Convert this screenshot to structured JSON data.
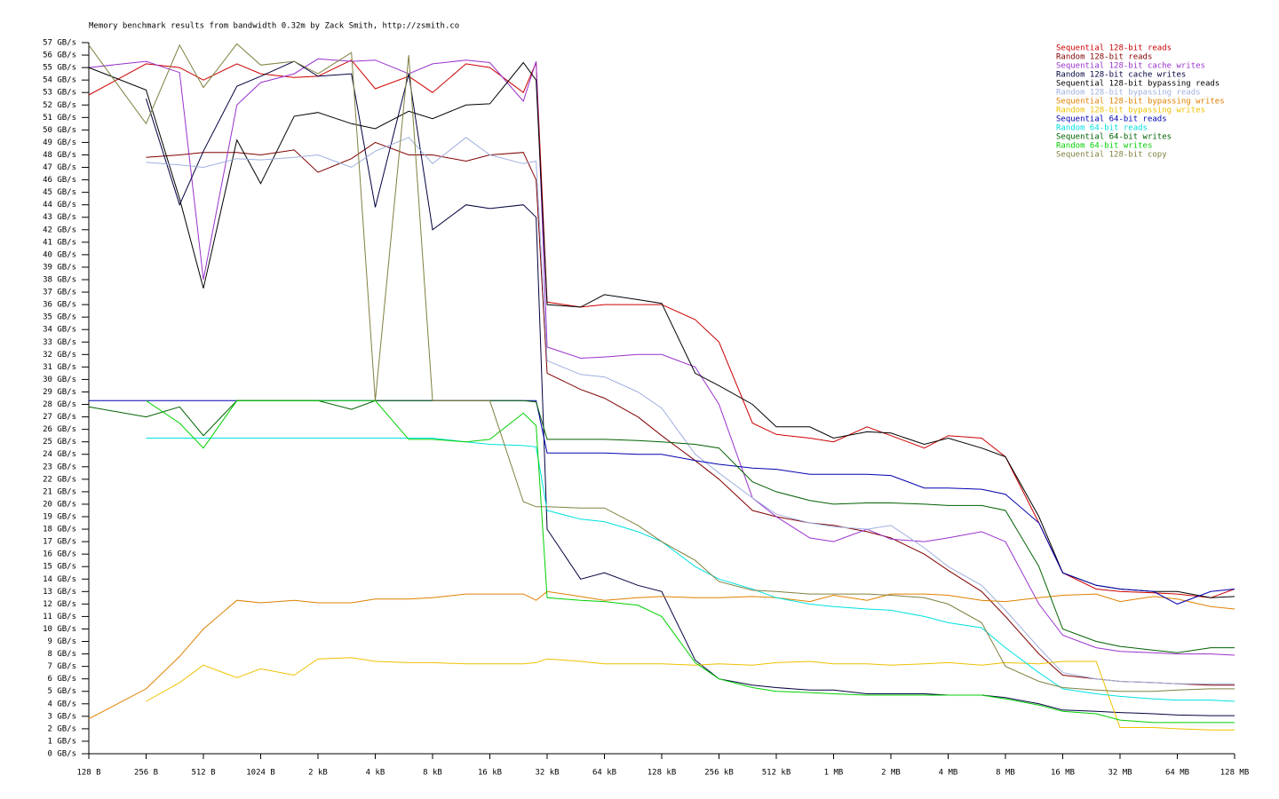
{
  "chart_data": {
    "type": "line",
    "title": "Memory benchmark results from bandwidth 0.32m by Zack Smith, http://zsmith.co",
    "xscale": "log2",
    "legend": "top-right",
    "grid": false,
    "x": [
      128,
      256,
      384,
      512,
      768,
      1024,
      1536,
      2048,
      3072,
      4096,
      6144,
      8192,
      12288,
      16384,
      24576,
      28672,
      32768,
      49152,
      65536,
      98304,
      131072,
      196608,
      262144,
      393216,
      524288,
      786432,
      1048576,
      1572864,
      2097152,
      3145728,
      4194304,
      6291456,
      8388608,
      12582912,
      16777216,
      25165824,
      33554432,
      50331648,
      67108864,
      100663296,
      134217728
    ],
    "xlim": [
      128,
      134217728
    ],
    "xticks": [
      {
        "value": 128,
        "label": "128 B"
      },
      {
        "value": 256,
        "label": "256 B"
      },
      {
        "value": 512,
        "label": "512 B"
      },
      {
        "value": 1024,
        "label": "1024 B"
      },
      {
        "value": 2048,
        "label": "2 kB"
      },
      {
        "value": 4096,
        "label": "4 kB"
      },
      {
        "value": 8192,
        "label": "8 kB"
      },
      {
        "value": 16384,
        "label": "16 kB"
      },
      {
        "value": 32768,
        "label": "32 kB"
      },
      {
        "value": 65536,
        "label": "64 kB"
      },
      {
        "value": 131072,
        "label": "128 kB"
      },
      {
        "value": 262144,
        "label": "256 kB"
      },
      {
        "value": 524288,
        "label": "512 kB"
      },
      {
        "value": 1048576,
        "label": "1 MB"
      },
      {
        "value": 2097152,
        "label": "2 MB"
      },
      {
        "value": 4194304,
        "label": "4 MB"
      },
      {
        "value": 8388608,
        "label": "8 MB"
      },
      {
        "value": 16777216,
        "label": "16 MB"
      },
      {
        "value": 33554432,
        "label": "32 MB"
      },
      {
        "value": 67108864,
        "label": "64 MB"
      },
      {
        "value": 134217728,
        "label": "128 MB"
      }
    ],
    "ylim": [
      0,
      57
    ],
    "yticks": [
      {
        "value": 0,
        "label": "0 GB/s"
      },
      {
        "value": 1,
        "label": "1 GB/s"
      },
      {
        "value": 2,
        "label": "2 GB/s"
      },
      {
        "value": 3,
        "label": "3 GB/s"
      },
      {
        "value": 4,
        "label": "4 GB/s"
      },
      {
        "value": 5,
        "label": "5 GB/s"
      },
      {
        "value": 6,
        "label": "6 GB/s"
      },
      {
        "value": 7,
        "label": "7 GB/s"
      },
      {
        "value": 8,
        "label": "8 GB/s"
      },
      {
        "value": 9,
        "label": "9 GB/s"
      },
      {
        "value": 10,
        "label": "10 GB/s"
      },
      {
        "value": 11,
        "label": "11 GB/s"
      },
      {
        "value": 12,
        "label": "12 GB/s"
      },
      {
        "value": 13,
        "label": "13 GB/s"
      },
      {
        "value": 14,
        "label": "14 GB/s"
      },
      {
        "value": 15,
        "label": "15 GB/s"
      },
      {
        "value": 16,
        "label": "16 GB/s"
      },
      {
        "value": 17,
        "label": "17 GB/s"
      },
      {
        "value": 18,
        "label": "18 GB/s"
      },
      {
        "value": 19,
        "label": "19 GB/s"
      },
      {
        "value": 20,
        "label": "20 GB/s"
      },
      {
        "value": 21,
        "label": "21 GB/s"
      },
      {
        "value": 22,
        "label": "22 GB/s"
      },
      {
        "value": 23,
        "label": "23 GB/s"
      },
      {
        "value": 24,
        "label": "24 GB/s"
      },
      {
        "value": 25,
        "label": "25 GB/s"
      },
      {
        "value": 26,
        "label": "26 GB/s"
      },
      {
        "value": 27,
        "label": "27 GB/s"
      },
      {
        "value": 28,
        "label": "28 GB/s"
      },
      {
        "value": 29,
        "label": "29 GB/s"
      },
      {
        "value": 30,
        "label": "30 GB/s"
      },
      {
        "value": 31,
        "label": "31 GB/s"
      },
      {
        "value": 32,
        "label": "32 GB/s"
      },
      {
        "value": 33,
        "label": "33 GB/s"
      },
      {
        "value": 34,
        "label": "34 GB/s"
      },
      {
        "value": 35,
        "label": "35 GB/s"
      },
      {
        "value": 36,
        "label": "36 GB/s"
      },
      {
        "value": 37,
        "label": "37 GB/s"
      },
      {
        "value": 38,
        "label": "38 GB/s"
      },
      {
        "value": 39,
        "label": "39 GB/s"
      },
      {
        "value": 40,
        "label": "40 GB/s"
      },
      {
        "value": 41,
        "label": "41 GB/s"
      },
      {
        "value": 42,
        "label": "42 GB/s"
      },
      {
        "value": 43,
        "label": "43 GB/s"
      },
      {
        "value": 44,
        "label": "44 GB/s"
      },
      {
        "value": 45,
        "label": "45 GB/s"
      },
      {
        "value": 46,
        "label": "46 GB/s"
      },
      {
        "value": 47,
        "label": "47 GB/s"
      },
      {
        "value": 48,
        "label": "48 GB/s"
      },
      {
        "value": 49,
        "label": "49 GB/s"
      },
      {
        "value": 50,
        "label": "50 GB/s"
      },
      {
        "value": 51,
        "label": "51 GB/s"
      },
      {
        "value": 52,
        "label": "52 GB/s"
      },
      {
        "value": 53,
        "label": "53 GB/s"
      },
      {
        "value": 54,
        "label": "54 GB/s"
      },
      {
        "value": 55,
        "label": "55 GB/s"
      },
      {
        "value": 56,
        "label": "56 GB/s"
      },
      {
        "value": 57,
        "label": "57 GB/s"
      }
    ],
    "series": [
      {
        "name": "Sequential 128-bit reads",
        "color": "#cc0000",
        "values": [
          52.8,
          55.3,
          55,
          54,
          55.3,
          54.5,
          54.2,
          54.3,
          55.6,
          53.3,
          54.3,
          53,
          55.3,
          55,
          53,
          55.4,
          36.2,
          35.8,
          36,
          36,
          36,
          34.8,
          33,
          26.5,
          25.6,
          25.3,
          25,
          26.2,
          25.5,
          24.5,
          25.5,
          25.3,
          23.8,
          18.5,
          14.5,
          13.2,
          13,
          12.9,
          12.8,
          12.5,
          13.2
        ]
      },
      {
        "name": "Random 128-bit reads",
        "color": "#800000",
        "values": [
          null,
          47.8,
          48,
          48.2,
          48.2,
          48,
          48.4,
          46.6,
          47.7,
          49,
          48,
          48,
          47.5,
          48,
          48.2,
          46,
          30.5,
          29.2,
          28.5,
          27,
          25.5,
          23.5,
          22,
          19.5,
          19,
          18.5,
          18.3,
          17.8,
          17.3,
          16,
          14.7,
          13,
          11,
          8,
          6.3,
          6,
          5.8,
          5.7,
          5.6,
          5.5,
          5.5
        ]
      },
      {
        "name": "Sequential 128-bit cache writes",
        "color": "#9932cc",
        "values": [
          55,
          55.5,
          54.6,
          38,
          52,
          53.8,
          54.5,
          55.7,
          55.5,
          55.6,
          54.5,
          55.3,
          55.6,
          55.4,
          52.3,
          55.5,
          32.6,
          31.7,
          31.8,
          32,
          32,
          31,
          28,
          20.5,
          19,
          17.3,
          17,
          18,
          17.2,
          17,
          17.3,
          17.8,
          17,
          12,
          9.5,
          8.5,
          8.2,
          8.1,
          8,
          8,
          7.9
        ]
      },
      {
        "name": "Random 128-bit cache writes",
        "color": "#000040",
        "values": [
          null,
          52.5,
          44,
          48.3,
          53.5,
          54.3,
          55.5,
          54.3,
          54.5,
          43.8,
          54.5,
          42,
          44,
          43.7,
          44,
          43,
          18,
          14,
          14.5,
          13.5,
          13,
          7.5,
          6,
          5.5,
          5.3,
          5.1,
          5.1,
          4.8,
          4.8,
          4.8,
          4.7,
          4.7,
          4.5,
          4,
          3.5,
          3.4,
          3.3,
          3.2,
          3.1,
          3.05,
          3.05
        ]
      },
      {
        "name": "Sequential 128-bit bypassing reads",
        "color": "#000000",
        "values": [
          55,
          53.2,
          44.5,
          37.3,
          49.2,
          45.7,
          51.1,
          51.4,
          50.5,
          50.1,
          51.5,
          50.9,
          52,
          52.1,
          55.4,
          54,
          36,
          35.8,
          36.8,
          36.4,
          36.1,
          30.5,
          29.5,
          28,
          26.2,
          26.2,
          25.3,
          25.8,
          25.7,
          24.8,
          25.3,
          24.5,
          23.8,
          19,
          14.5,
          13.5,
          13.2,
          13,
          13,
          12.5,
          12.6
        ]
      },
      {
        "name": "Random 128-bit bypassing reads",
        "color": "#a0b0e0",
        "values": [
          null,
          47.4,
          47.2,
          47,
          47.7,
          47.6,
          47.8,
          48,
          47,
          48.3,
          49.4,
          47.3,
          49.4,
          48,
          47.3,
          47.5,
          31.5,
          30.4,
          30.2,
          29,
          27.7,
          24,
          22.5,
          20.5,
          19.2,
          18.5,
          18.2,
          18,
          18.3,
          16.5,
          15,
          13.5,
          11.5,
          8.5,
          6.5,
          6,
          5.8,
          5.7,
          5.6,
          5.6,
          5.6
        ]
      },
      {
        "name": "Sequential 128-bit bypassing writes",
        "color": "#e08000",
        "values": [
          2.8,
          5.2,
          7.8,
          10,
          12.3,
          12.1,
          12.3,
          12.1,
          12.1,
          12.4,
          12.4,
          12.5,
          12.8,
          12.8,
          12.8,
          12.3,
          13,
          12.6,
          12.3,
          12.5,
          12.6,
          12.5,
          12.5,
          12.6,
          12.5,
          12.2,
          12.7,
          12.3,
          12.8,
          12.8,
          12.7,
          12.3,
          12.2,
          12.5,
          12.7,
          12.8,
          12.2,
          12.6,
          12.4,
          11.8,
          11.6
        ]
      },
      {
        "name": "Random 128-bit bypassing writes",
        "color": "#f0c000",
        "values": [
          null,
          4.2,
          5.7,
          7.1,
          6.1,
          6.8,
          6.3,
          7.6,
          7.7,
          7.4,
          7.3,
          7.3,
          7.2,
          7.2,
          7.2,
          7.3,
          7.6,
          7.4,
          7.2,
          7.2,
          7.2,
          7.1,
          7.2,
          7.1,
          7.3,
          7.4,
          7.2,
          7.2,
          7.1,
          7.2,
          7.3,
          7.1,
          7.3,
          7.2,
          7.4,
          7.4,
          2.1,
          2.1,
          2,
          1.9,
          1.9
        ]
      },
      {
        "name": "Sequential 64-bit reads",
        "color": "#0000b0",
        "values": [
          28.3,
          28.3,
          28.3,
          28.3,
          28.3,
          28.3,
          28.3,
          28.3,
          28.3,
          28.3,
          28.3,
          28.3,
          28.3,
          28.3,
          28.3,
          28.3,
          24.1,
          24.1,
          24.1,
          24,
          24,
          23.5,
          23.2,
          22.9,
          22.8,
          22.4,
          22.4,
          22.4,
          22.3,
          21.3,
          21.3,
          21.2,
          20.8,
          18.5,
          14.5,
          13.5,
          13.2,
          13,
          12,
          13,
          13.2
        ]
      },
      {
        "name": "Random 64-bit reads",
        "color": "#00e0e0",
        "values": [
          null,
          25.3,
          25.3,
          25.3,
          25.3,
          25.3,
          25.3,
          25.3,
          25.3,
          25.3,
          25.3,
          25.3,
          25,
          24.8,
          24.7,
          24.6,
          19.5,
          18.8,
          18.6,
          17.8,
          17,
          15,
          14,
          13.2,
          12.5,
          12,
          11.8,
          11.6,
          11.5,
          11,
          10.5,
          10.1,
          8.5,
          6.5,
          5.2,
          4.8,
          4.6,
          4.4,
          4.3,
          4.3,
          4.2
        ]
      },
      {
        "name": "Sequential 64-bit writes",
        "color": "#006000",
        "values": [
          27.8,
          27,
          27.8,
          25.5,
          28.3,
          28.3,
          28.3,
          28.3,
          27.6,
          28.3,
          28.3,
          28.3,
          28.3,
          28.3,
          28.3,
          28.2,
          25.2,
          25.2,
          25.2,
          25.1,
          25,
          24.8,
          24.5,
          21.8,
          21,
          20.3,
          20,
          20.1,
          20.1,
          20,
          19.9,
          19.9,
          19.5,
          15,
          10,
          9,
          8.6,
          8.3,
          8.1,
          8.5,
          8.5
        ]
      },
      {
        "name": "Random 64-bit writes",
        "color": "#00d000",
        "values": [
          null,
          28.3,
          26.5,
          24.5,
          28.3,
          28.3,
          28.3,
          28.3,
          28.3,
          28.3,
          25.2,
          25.2,
          25,
          25.2,
          27.3,
          26.3,
          12.5,
          12.3,
          12.2,
          11.9,
          11,
          7.3,
          6,
          5.3,
          5,
          4.9,
          4.8,
          4.7,
          4.7,
          4.7,
          4.7,
          4.7,
          4.4,
          3.9,
          3.4,
          3.2,
          2.7,
          2.5,
          2.5,
          2.5,
          2.5
        ]
      },
      {
        "name": "Sequential 128-bit copy",
        "color": "#808040",
        "values": [
          56.8,
          50.5,
          56.8,
          53.4,
          56.9,
          55.2,
          55.5,
          54.5,
          56.2,
          28.3,
          56,
          28.3,
          28.3,
          28.3,
          20.2,
          19.8,
          19.8,
          19.7,
          19.7,
          18.3,
          17,
          15.5,
          13.8,
          13.1,
          13,
          12.8,
          12.8,
          12.8,
          12.7,
          12.5,
          12,
          10.5,
          7,
          5.8,
          5.3,
          5.1,
          5,
          5,
          5.1,
          5.2,
          5.2
        ]
      }
    ]
  }
}
